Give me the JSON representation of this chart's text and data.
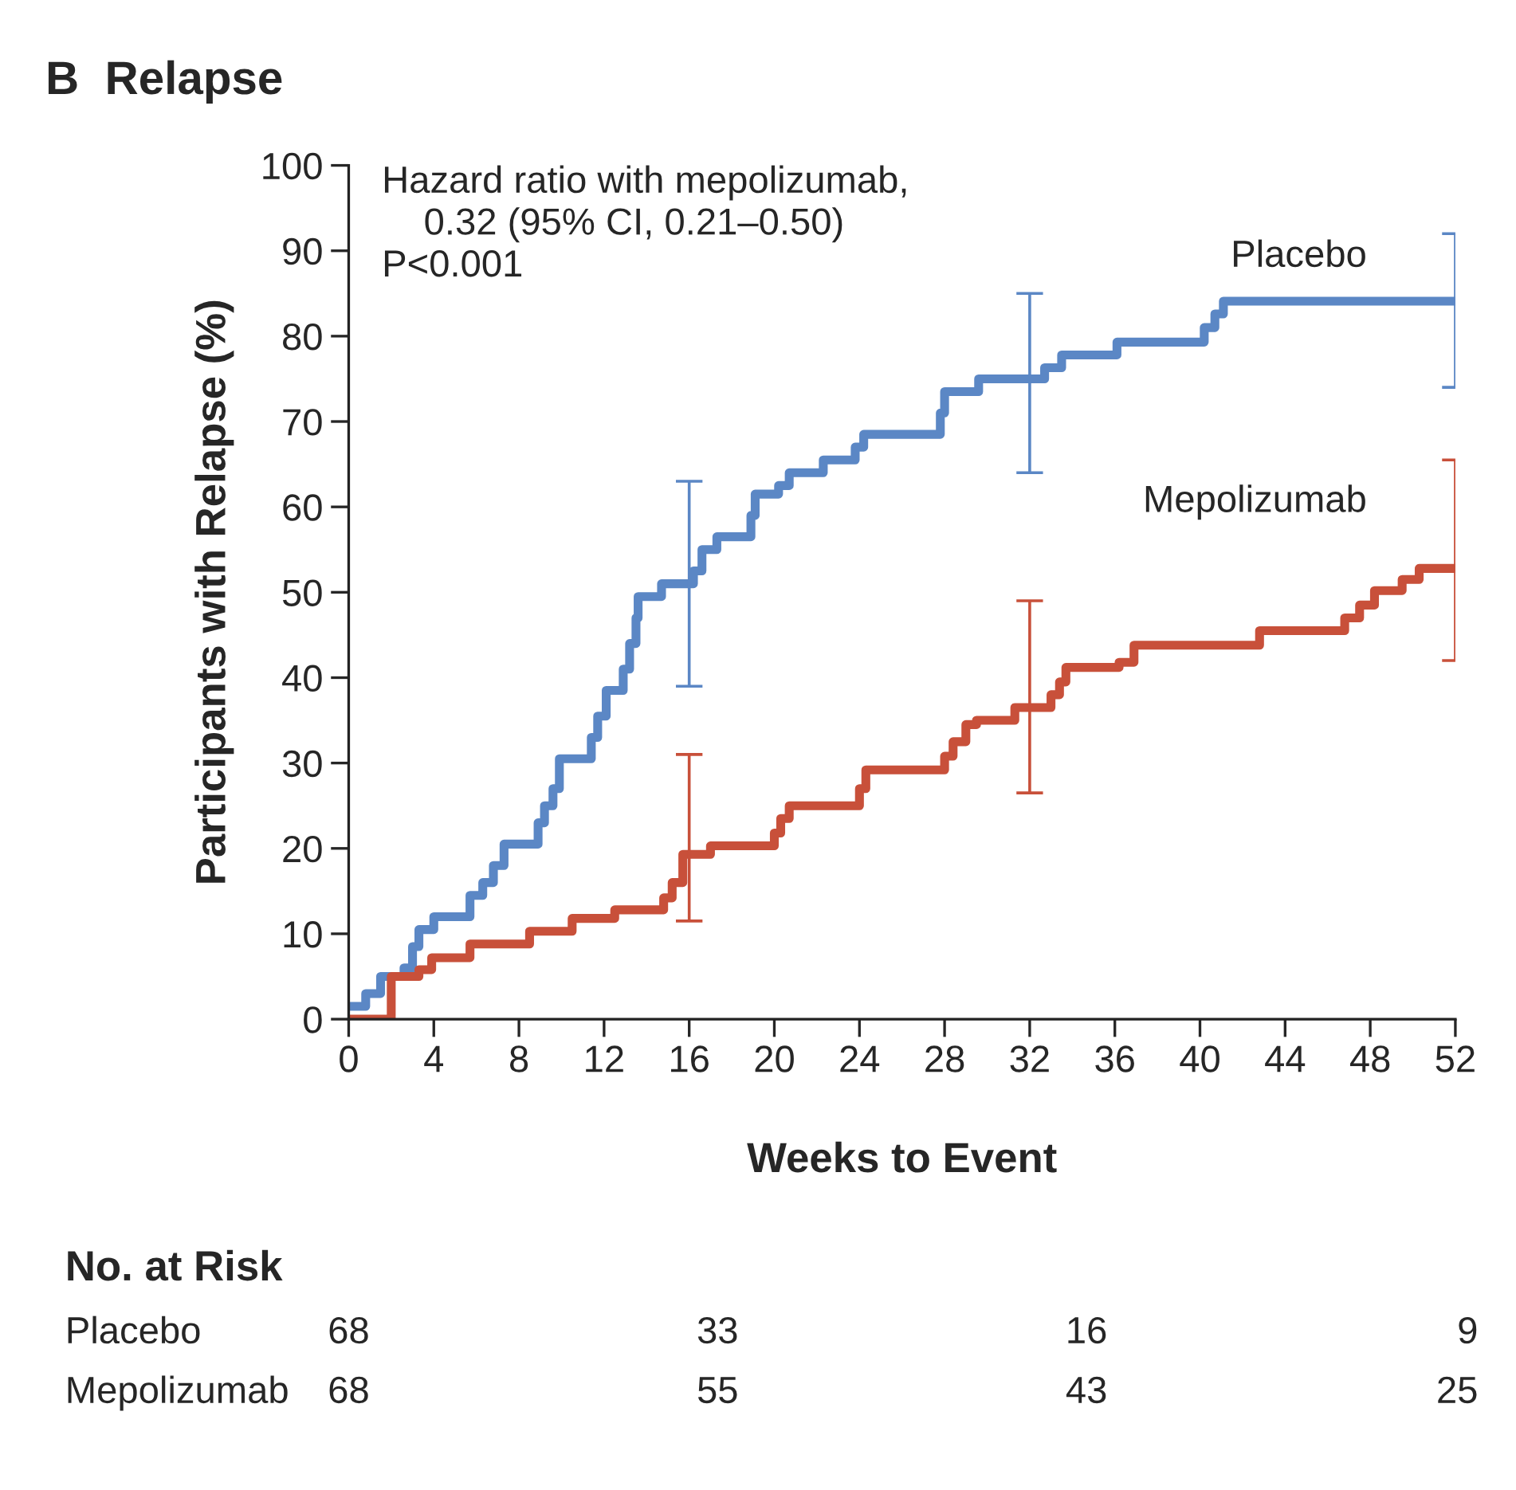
{
  "chart_data": {
    "type": "step",
    "title": "B  Relapse",
    "xlabel": "Weeks to Event",
    "ylabel": "Participants with Relapse (%)",
    "xlim": [
      0,
      52
    ],
    "xticks": [
      0,
      4,
      8,
      12,
      16,
      20,
      24,
      28,
      32,
      36,
      40,
      44,
      48,
      52
    ],
    "ylim": [
      0,
      100
    ],
    "yticks": [
      0,
      10,
      20,
      30,
      40,
      50,
      60,
      70,
      80,
      90,
      100
    ],
    "grid": false,
    "legend": false,
    "series": [
      {
        "name": "Placebo",
        "color": "#5b87c5",
        "x": [
          0,
          0.8,
          1.5,
          2.6,
          3,
          3.3,
          4,
          5.7,
          6.3,
          6.8,
          7.3,
          8.9,
          9.2,
          9.6,
          9.9,
          11.4,
          11.7,
          12.1,
          12.9,
          13.2,
          13.5,
          13.6,
          14.7,
          16,
          16.2,
          16.6,
          17.3,
          18.9,
          19.1,
          20.2,
          20.7,
          22.3,
          23.8,
          24.2,
          27.8,
          28,
          29.6,
          32,
          32.7,
          33.5,
          36.1,
          40.2,
          40.7,
          41.1,
          52
        ],
        "values": [
          1.5,
          3,
          5,
          6,
          8.5,
          10.5,
          12,
          14.5,
          16,
          18,
          20.5,
          23,
          25,
          27,
          30.5,
          33,
          35.5,
          38.5,
          41,
          44,
          47,
          49.5,
          51,
          51,
          52.5,
          55,
          56.5,
          59,
          61.5,
          62.5,
          64,
          65.5,
          67,
          68.5,
          71,
          73.5,
          75,
          75,
          76.3,
          77.8,
          79.3,
          81,
          82.6,
          84.1,
          84.1
        ],
        "errors": [
          null,
          null,
          null,
          null,
          null,
          null,
          null,
          null,
          null,
          null,
          null,
          null,
          null,
          null,
          null,
          null,
          null,
          null,
          null,
          null,
          null,
          null,
          null,
          [
            39,
            63
          ],
          null,
          null,
          null,
          null,
          null,
          null,
          null,
          null,
          null,
          null,
          null,
          null,
          null,
          [
            64,
            85
          ],
          null,
          null,
          null,
          null,
          null,
          null,
          [
            74,
            92
          ]
        ]
      },
      {
        "name": "Mepolizumab",
        "color": "#c8503a",
        "x": [
          0,
          2,
          3.3,
          3.9,
          5.7,
          8.5,
          10.5,
          12.5,
          14.8,
          15.2,
          15.7,
          16,
          17,
          20,
          20.3,
          20.7,
          24,
          24.3,
          28,
          28.4,
          29,
          29.5,
          31.3,
          32,
          33,
          33.4,
          33.7,
          36.2,
          36.9,
          42.8,
          46.8,
          47.5,
          48.2,
          49.5,
          50.3,
          52
        ],
        "values": [
          0,
          5,
          5.8,
          7.2,
          8.8,
          10.3,
          11.8,
          12.8,
          14.2,
          16,
          19.3,
          19.3,
          20.3,
          21.8,
          23.5,
          25,
          27,
          29.2,
          30.8,
          32.5,
          34.5,
          35,
          36.5,
          36.5,
          38,
          39.5,
          41.2,
          41.8,
          43.8,
          45.5,
          47,
          48.5,
          50.2,
          51.5,
          52.8,
          52.8
        ],
        "errors": [
          null,
          null,
          null,
          null,
          null,
          null,
          null,
          null,
          null,
          null,
          null,
          [
            11.5,
            31
          ],
          null,
          null,
          null,
          null,
          null,
          null,
          null,
          null,
          null,
          null,
          null,
          [
            26.5,
            49
          ],
          null,
          null,
          null,
          null,
          null,
          null,
          null,
          null,
          null,
          null,
          null,
          [
            42,
            65.5
          ]
        ]
      }
    ],
    "annotations": [
      "Hazard ratio with mepolizumab,\n    0.32 (95% CI, 0.21–0.50)\nP<0.001",
      "No. at Risk",
      "Placebo",
      "68",
      "33",
      "16",
      "9",
      "Mepolizumab",
      "68",
      "55",
      "43",
      "25"
    ]
  }
}
